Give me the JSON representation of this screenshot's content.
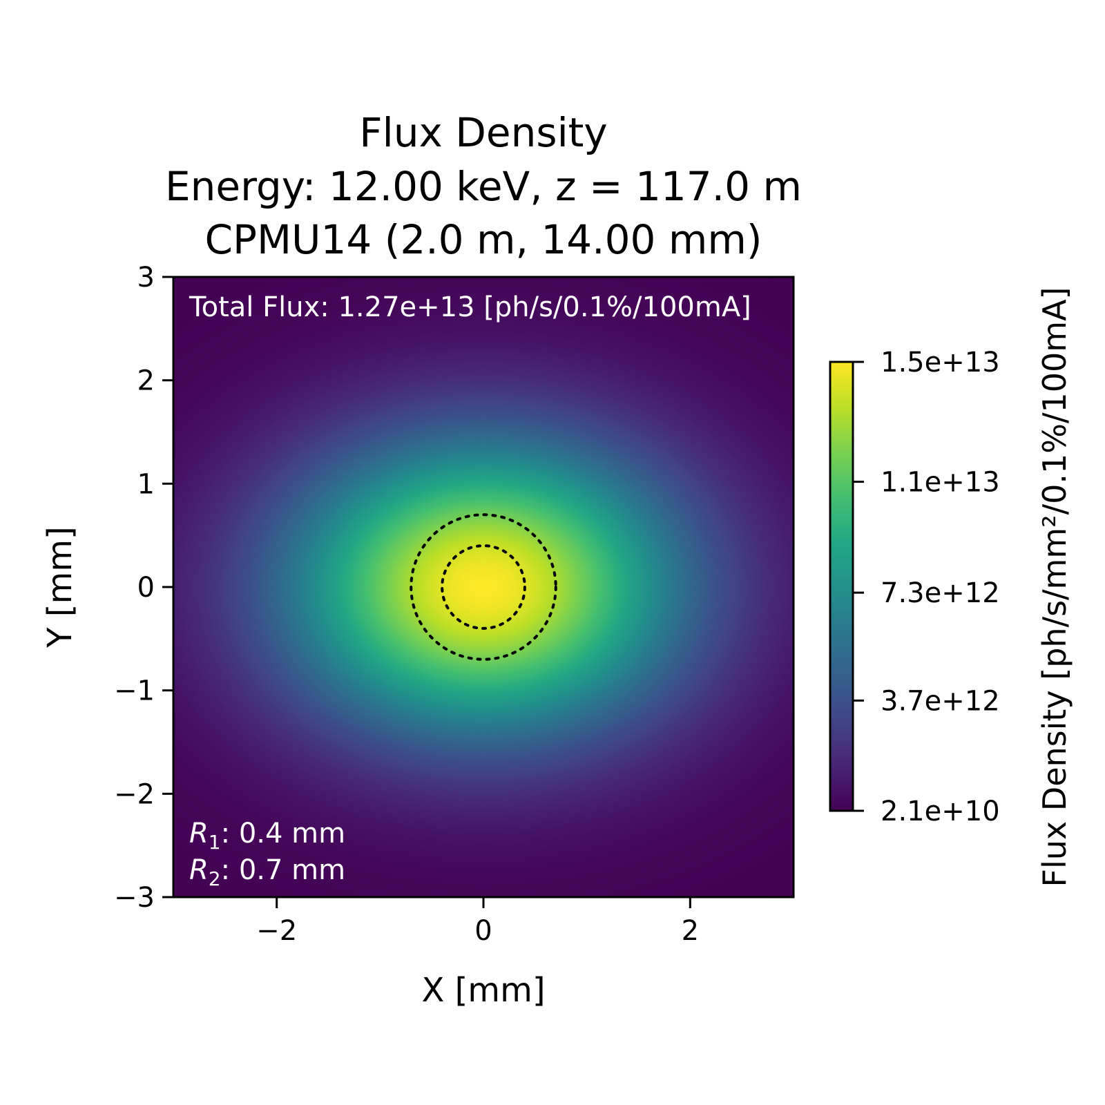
{
  "chart_data": {
    "type": "heatmap",
    "title_lines": [
      "Flux Density",
      "Energy: 12.00 keV, z = 117.0 m",
      "CPMU14 (2.0 m, 14.00 mm)"
    ],
    "xlabel": "X [mm]",
    "ylabel": "Y [mm]",
    "xlim": [
      -3,
      3
    ],
    "ylim": [
      -3,
      3
    ],
    "x_ticks": [
      {
        "value": -2,
        "label": "−2"
      },
      {
        "value": 0,
        "label": "0"
      },
      {
        "value": 2,
        "label": "2"
      }
    ],
    "y_ticks": [
      {
        "value": -3,
        "label": "−3"
      },
      {
        "value": -2,
        "label": "−2"
      },
      {
        "value": -1,
        "label": "−1"
      },
      {
        "value": 0,
        "label": "0"
      },
      {
        "value": 1,
        "label": "1"
      },
      {
        "value": 2,
        "label": "2"
      },
      {
        "value": 3,
        "label": "3"
      }
    ],
    "distribution": {
      "center": [
        0,
        0
      ],
      "peak": 15000000000000.0,
      "min": 21000000000.0,
      "sigma_x_mm": 1.35,
      "sigma_y_mm": 1.0
    },
    "colormap": "viridis",
    "colorbar": {
      "label": "Flux Density [ph/s/mm²/0.1%/100mA]",
      "min": 21000000000.0,
      "max": 15000000000000.0,
      "ticks": [
        {
          "value": 15000000000000.0,
          "label": "1.5e+13"
        },
        {
          "value": 11000000000000.0,
          "label": "1.1e+13"
        },
        {
          "value": 7300000000000.0,
          "label": "7.3e+12"
        },
        {
          "value": 3700000000000.0,
          "label": "3.7e+12"
        },
        {
          "value": 21000000000.0,
          "label": "2.1e+10"
        }
      ]
    },
    "circles": [
      {
        "center": [
          0,
          0
        ],
        "radius_mm": 0.4,
        "style": "dotted",
        "color": "#000000"
      },
      {
        "center": [
          0,
          0
        ],
        "radius_mm": 0.7,
        "style": "dotted",
        "color": "#000000"
      }
    ],
    "annotations": {
      "total_flux": "Total Flux: 1.27e+13 [ph/s/0.1%/100mA]",
      "r1": {
        "symbol": "R",
        "sub": "1",
        "text": ": 0.4 mm"
      },
      "r2": {
        "symbol": "R",
        "sub": "2",
        "text": ": 0.7 mm"
      }
    }
  }
}
